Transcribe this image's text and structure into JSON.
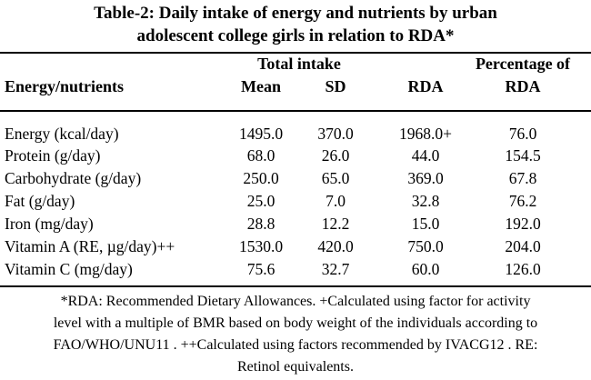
{
  "title": {
    "line1": "Table-2: Daily intake of energy and nutrients by urban",
    "line2": "adolescent college girls in relation to RDA*"
  },
  "header": {
    "group_total_intake": "Total intake",
    "group_percentage": "Percentage of",
    "col_nutrient": "Energy/nutrients",
    "col_mean": "Mean",
    "col_sd": "SD",
    "col_rda": "RDA",
    "col_pct_rda": "RDA"
  },
  "rows": [
    {
      "nutrient": "Energy (kcal/day)",
      "mean": "1495.0",
      "sd": "370.0",
      "rda": "1968.0+",
      "pct": "76.0"
    },
    {
      "nutrient": "Protein (g/day)",
      "mean": "68.0",
      "sd": "26.0",
      "rda": "44.0",
      "pct": "154.5"
    },
    {
      "nutrient": "Carbohydrate (g/day)",
      "mean": "250.0",
      "sd": "65.0",
      "rda": "369.0",
      "pct": "67.8"
    },
    {
      "nutrient": "Fat (g/day)",
      "mean": "25.0",
      "sd": "7.0",
      "rda": "32.8",
      "pct": "76.2"
    },
    {
      "nutrient": "Iron (mg/day)",
      "mean": "28.8",
      "sd": "12.2",
      "rda": "15.0",
      "pct": "192.0"
    },
    {
      "nutrient": "Vitamin A (RE, µg/day)++",
      "mean": "1530.0",
      "sd": "420.0",
      "rda": "750.0",
      "pct": "204.0"
    },
    {
      "nutrient": "Vitamin C (mg/day)",
      "mean": "75.6",
      "sd": "32.7",
      "rda": "60.0",
      "pct": "126.0"
    }
  ],
  "footnote": {
    "line1": "*RDA: Recommended Dietary Allowances. +Calculated using factor for activity",
    "line2": "level with a multiple of BMR based on body weight of the individuals according to",
    "line3": "FAO/WHO/UNU11 . ++Calculated using factors recommended by IVACG12 . RE:",
    "line4": "Retinol equivalents."
  }
}
